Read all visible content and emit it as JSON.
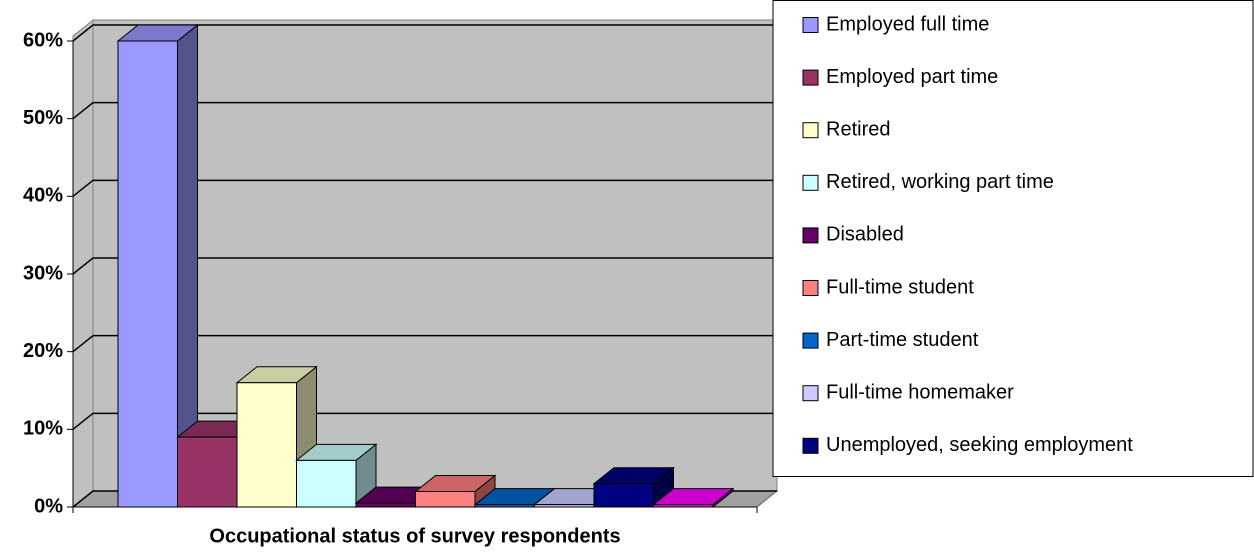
{
  "chart_data": {
    "type": "bar3d",
    "x_label": "Occupational status of survey respondents",
    "ylim": [
      0,
      60
    ],
    "yticks": [
      {
        "value": 0,
        "label": "0%"
      },
      {
        "value": 10,
        "label": "10%"
      },
      {
        "value": 20,
        "label": "20%"
      },
      {
        "value": 30,
        "label": "30%"
      },
      {
        "value": 40,
        "label": "40%"
      },
      {
        "value": 50,
        "label": "50%"
      },
      {
        "value": 60,
        "label": "60%"
      }
    ],
    "grid": true,
    "legend": "right",
    "series": [
      {
        "name": "Employed full time",
        "color": "#9999ff",
        "values": [
          60
        ]
      },
      {
        "name": "Employed part time",
        "color": "#993366",
        "values": [
          9
        ]
      },
      {
        "name": "Retired",
        "color": "#ffffcc",
        "values": [
          16
        ]
      },
      {
        "name": "Retired, working part time",
        "color": "#ccffff",
        "values": [
          6
        ]
      },
      {
        "name": "Disabled",
        "color": "#660066",
        "values": [
          0.5
        ]
      },
      {
        "name": "Full-time student",
        "color": "#ff8080",
        "values": [
          2
        ]
      },
      {
        "name": "Part-time student",
        "color": "#0066cc",
        "values": [
          0.3
        ]
      },
      {
        "name": "Full-time homemaker",
        "color": "#ccccff",
        "values": [
          0.3
        ]
      },
      {
        "name": "Unemployed, seeking employment",
        "color": "#000080",
        "values": [
          3
        ]
      },
      {
        "name": null,
        "color": "#ff00ff",
        "values": [
          0.3
        ]
      }
    ]
  }
}
